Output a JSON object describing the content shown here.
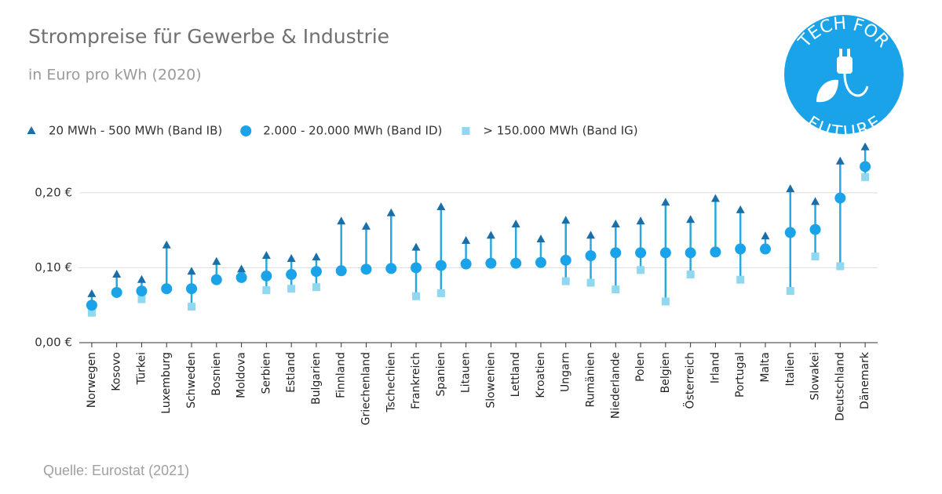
{
  "chart_data": {
    "type": "dotplot",
    "title": "Strompreise für Gewerbe & Industrie",
    "subtitle": "in Euro pro kWh (2020)",
    "source": "Quelle: Eurostat (2021)",
    "logo": {
      "top": "TECH FOR",
      "bottom": "FUTURE"
    },
    "categories": [
      "Norwegen",
      "Kosovo",
      "Türkei",
      "Luxemburg",
      "Schweden",
      "Bosnien",
      "Moldova",
      "Serbien",
      "Estland",
      "Bulgarien",
      "Finnland",
      "Griechenland",
      "Tschechien",
      "Frankreich",
      "Spanien",
      "Litauen",
      "Slowenien",
      "Lettland",
      "Kroatien",
      "Ungarn",
      "Rumänien",
      "Niederlande",
      "Polen",
      "Belgien",
      "Österreich",
      "Irland",
      "Portugal",
      "Malta",
      "Italien",
      "Slowakei",
      "Deutschland",
      "Dänemark"
    ],
    "series": [
      {
        "name": "20 MWh - 500 MWh (Band IB)",
        "marker": "triangle",
        "color": "#1a6fa8",
        "values": [
          0.065,
          0.091,
          0.084,
          0.13,
          0.095,
          0.108,
          0.098,
          0.116,
          0.112,
          0.114,
          0.162,
          0.155,
          0.173,
          0.127,
          0.181,
          0.136,
          0.143,
          0.158,
          0.138,
          0.163,
          0.143,
          0.158,
          0.162,
          0.187,
          0.164,
          0.192,
          0.177,
          0.142,
          0.205,
          0.188,
          0.242,
          0.261
        ]
      },
      {
        "name": "2.000 - 20.000 MWh (Band ID)",
        "marker": "circle",
        "color": "#1aa3e8",
        "values": [
          0.05,
          0.067,
          0.069,
          0.072,
          0.072,
          0.084,
          0.087,
          0.089,
          0.091,
          0.095,
          0.096,
          0.098,
          0.099,
          0.1,
          0.103,
          0.105,
          0.106,
          0.106,
          0.107,
          0.11,
          0.116,
          0.12,
          0.12,
          0.12,
          0.12,
          0.121,
          0.125,
          0.125,
          0.147,
          0.151,
          0.193,
          0.235
        ]
      },
      {
        "name": "> 150.000 MWh (Band IG)",
        "marker": "square",
        "color": "#8fd8f0",
        "values": [
          0.04,
          null,
          0.058,
          null,
          0.048,
          null,
          null,
          0.07,
          0.072,
          0.074,
          null,
          null,
          null,
          0.062,
          0.066,
          null,
          null,
          null,
          null,
          0.082,
          0.08,
          0.071,
          0.097,
          0.055,
          0.091,
          null,
          0.084,
          null,
          0.069,
          0.115,
          0.102,
          0.221
        ]
      }
    ],
    "line_color": "#29a8e0",
    "ylim": [
      0,
      0.27
    ],
    "yticks": [
      {
        "value": 0,
        "label": "0,00 €"
      },
      {
        "value": 0.1,
        "label": "0,10 €"
      },
      {
        "value": 0.2,
        "label": "0,20 €"
      }
    ],
    "grid": true
  }
}
